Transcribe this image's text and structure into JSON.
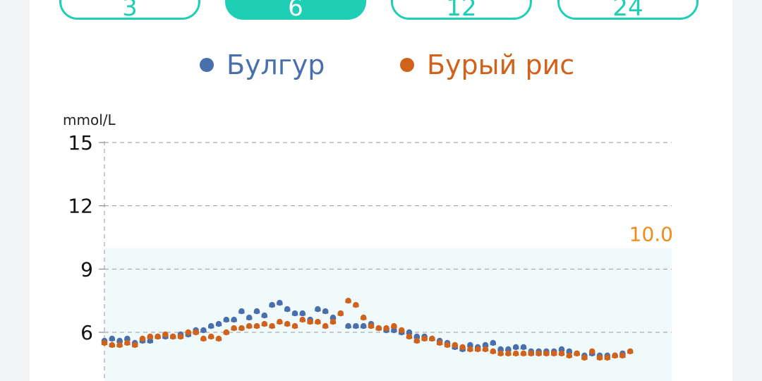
{
  "tabs": [
    {
      "label": "3",
      "active": false
    },
    {
      "label": "6",
      "active": true
    },
    {
      "label": "12",
      "active": false
    },
    {
      "label": "24",
      "active": false
    }
  ],
  "legend": [
    {
      "label": "Булгур",
      "color": "#4a6fad"
    },
    {
      "label": "Бурый рис",
      "color": "#d0621c"
    }
  ],
  "colors": {
    "accent": "#1ecfb5",
    "target_band": "#f0fafb",
    "threshold_label": "#f08c1a"
  },
  "chart_data": {
    "type": "scatter",
    "ylabel": "mmol/L",
    "y_ticks": [
      "15",
      "12",
      "9",
      "6"
    ],
    "ylim": [
      3.8,
      15
    ],
    "target_upper": 10.0,
    "target_upper_label": "10.0",
    "grid": true,
    "series": [
      {
        "name": "Булгур",
        "color": "#4a6fad",
        "values": [
          5.6,
          5.7,
          5.6,
          5.7,
          5.5,
          5.6,
          5.6,
          5.8,
          5.8,
          5.8,
          5.9,
          5.9,
          6.1,
          6.1,
          6.3,
          6.4,
          6.6,
          6.6,
          7.0,
          6.7,
          7.0,
          6.8,
          7.3,
          7.4,
          7.1,
          6.9,
          6.9,
          6.6,
          7.1,
          7.0,
          6.7,
          6.9,
          6.3,
          6.3,
          6.3,
          6.4,
          6.2,
          6.1,
          6.1,
          6.0,
          6.0,
          5.8,
          5.8,
          5.7,
          5.6,
          5.5,
          5.3,
          5.2,
          5.4,
          5.3,
          5.4,
          5.5,
          5.2,
          5.2,
          5.3,
          5.3,
          5.1,
          5.1,
          5.1,
          5.1,
          5.2,
          5.1,
          5.0,
          4.9,
          5.0,
          4.9,
          4.9,
          4.9,
          5.0,
          null
        ]
      },
      {
        "name": "Бурый рис",
        "color": "#d0621c",
        "values": [
          5.5,
          5.4,
          5.4,
          5.5,
          5.4,
          5.7,
          5.8,
          5.8,
          5.9,
          5.8,
          5.8,
          6.0,
          6.0,
          5.7,
          5.8,
          5.7,
          6.0,
          6.2,
          6.2,
          6.3,
          6.3,
          6.4,
          6.3,
          6.5,
          6.4,
          6.3,
          6.6,
          6.5,
          6.5,
          6.3,
          6.5,
          6.9,
          7.5,
          7.3,
          6.7,
          6.3,
          6.2,
          6.2,
          6.3,
          6.1,
          5.8,
          5.6,
          5.7,
          5.7,
          5.5,
          5.4,
          5.4,
          5.3,
          5.2,
          5.2,
          5.2,
          5.1,
          5.0,
          5.0,
          5.0,
          5.0,
          5.0,
          5.0,
          5.0,
          5.0,
          5.0,
          4.9,
          5.0,
          4.8,
          5.1,
          4.8,
          4.8,
          4.9,
          4.9,
          5.1
        ]
      }
    ]
  }
}
